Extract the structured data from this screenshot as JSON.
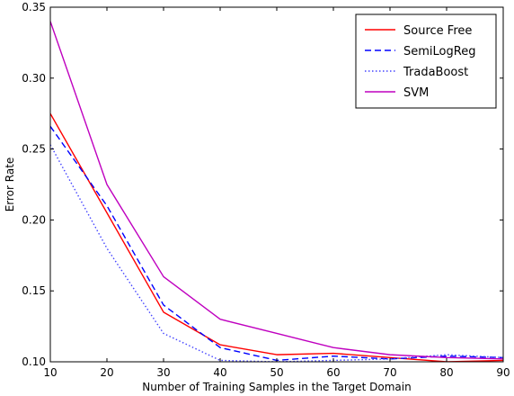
{
  "chart_data": {
    "type": "line",
    "title": "",
    "xlabel": "Number of Training Samples in the Target Domain",
    "ylabel": "Error Rate",
    "xlim": [
      10,
      90
    ],
    "ylim": [
      0.1,
      0.35
    ],
    "x_ticks": [
      "10",
      "20",
      "30",
      "40",
      "50",
      "60",
      "70",
      "80",
      "90"
    ],
    "y_ticks": [
      "0.10",
      "0.15",
      "0.20",
      "0.25",
      "0.30",
      "0.35"
    ],
    "grid": false,
    "legend_position": "top-right",
    "x": [
      10,
      20,
      30,
      40,
      50,
      60,
      70,
      80,
      90
    ],
    "series": [
      {
        "name": "Source Free",
        "color": "#ff0000",
        "dash": "solid",
        "values": [
          0.275,
          0.205,
          0.135,
          0.112,
          0.105,
          0.106,
          0.103,
          0.1,
          0.101
        ]
      },
      {
        "name": "SemiLogReg",
        "color": "#0000ff",
        "dash": "dashed",
        "values": [
          0.266,
          0.21,
          0.14,
          0.11,
          0.101,
          0.104,
          0.102,
          0.104,
          0.103
        ]
      },
      {
        "name": "TradaBoost",
        "color": "#4444ff",
        "dash": "dotted",
        "values": [
          0.253,
          0.18,
          0.12,
          0.101,
          0.1,
          0.101,
          0.102,
          0.105,
          0.103
        ]
      },
      {
        "name": "SVM",
        "color": "#bf00bf",
        "dash": "solid",
        "values": [
          0.34,
          0.225,
          0.16,
          0.13,
          0.12,
          0.11,
          0.105,
          0.103,
          0.102
        ]
      }
    ]
  }
}
